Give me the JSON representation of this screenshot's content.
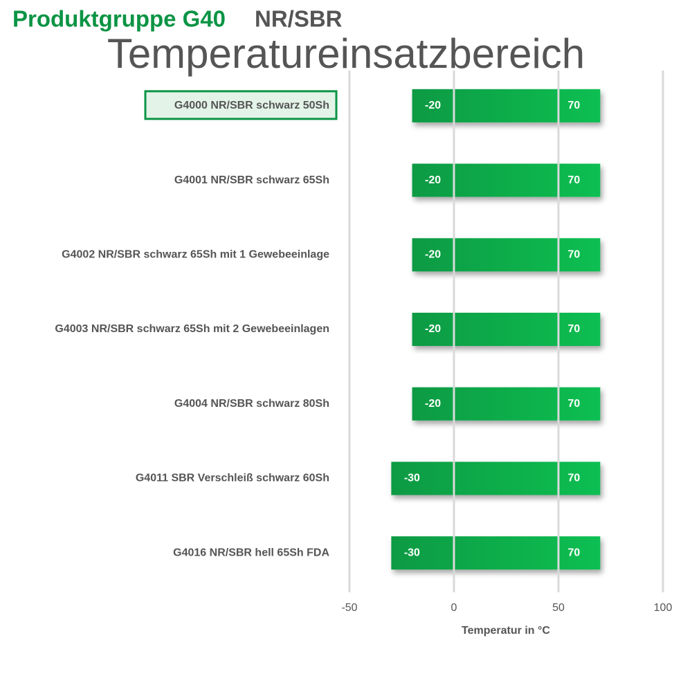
{
  "chart_data": {
    "type": "range-bar",
    "title": "Produktgruppe G40",
    "title_suffix": "NR/SBR",
    "subtitle": "Temperatureinsatzbereich",
    "x_label": "Temperatur in °C",
    "categories": [
      "G4000 NR/SBR schwarz 50Sh",
      "G4001 NR/SBR schwarz 65Sh",
      "G4002 NR/SBR schwarz 65Sh mit 1 Gewebeeinlage",
      "G4003 NR/SBR schwarz 65Sh mit 2 Gewebeeinlagen",
      "G4004 NR/SBR schwarz 80Sh",
      "G4011 SBR Verschleiß schwarz 60Sh",
      "G4016 NR/SBR hell 65Sh FDA"
    ],
    "low": [
      -20,
      -20,
      -20,
      -20,
      -20,
      -30,
      -30
    ],
    "high": [
      70,
      70,
      70,
      70,
      70,
      70,
      70
    ],
    "color": "#0aa84a",
    "xlim": [
      -50,
      100
    ],
    "xticks": [
      -50,
      0,
      50,
      100
    ],
    "grid": true
  }
}
